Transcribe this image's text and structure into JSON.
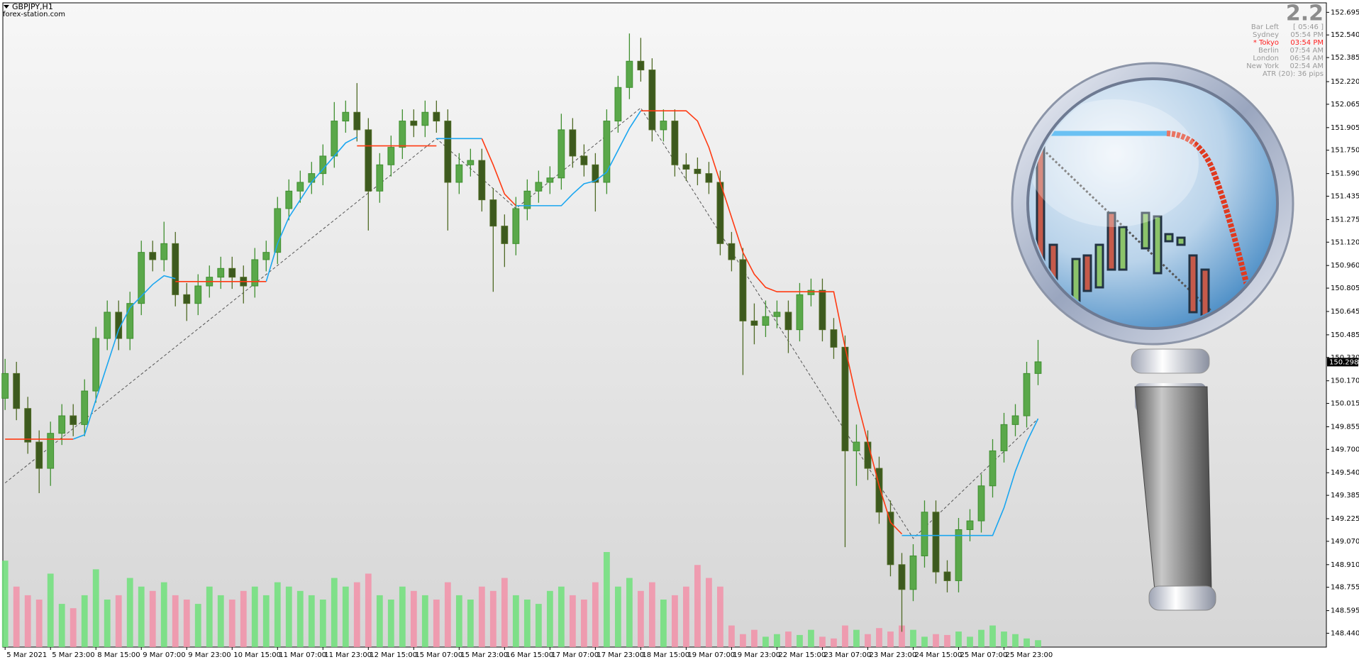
{
  "header": {
    "symbol": "GBPJPY,H1",
    "site": "forex-station.com"
  },
  "info_panel": {
    "big": "2.2",
    "rows": [
      [
        "Bar Left",
        "[ 05:46 ]"
      ],
      [
        "Sydney",
        "05:54 PM"
      ],
      [
        "* Tokyo",
        "03:54 PM"
      ],
      [
        "Berlin",
        "07:54 AM"
      ],
      [
        "London",
        "06:54 AM"
      ],
      [
        "New York",
        "02:54 AM"
      ]
    ],
    "atr": "ATR (20): 36 pips"
  },
  "chart_data": {
    "type": "candlestick",
    "xlim": [
      -0.2,
      116.4
    ],
    "xticks": [
      {
        "value": 0,
        "label": "5 Mar 2021"
      },
      {
        "value": 4,
        "label": "5 Mar 23:00"
      },
      {
        "value": 8,
        "label": "8 Mar 15:00"
      },
      {
        "value": 12,
        "label": "9 Mar 07:00"
      },
      {
        "value": 16,
        "label": "9 Mar 23:00"
      },
      {
        "value": 20,
        "label": "10 Mar 15:00"
      },
      {
        "value": 24,
        "label": "11 Mar 07:00"
      },
      {
        "value": 28,
        "label": "11 Mar 23:00"
      },
      {
        "value": 32,
        "label": "12 Mar 15:00"
      },
      {
        "value": 36,
        "label": "15 Mar 07:00"
      },
      {
        "value": 40,
        "label": "15 Mar 23:00"
      },
      {
        "value": 44,
        "label": "16 Mar 15:00"
      },
      {
        "value": 48,
        "label": "17 Mar 07:00"
      },
      {
        "value": 52,
        "label": "17 Mar 23:00"
      },
      {
        "value": 56,
        "label": "18 Mar 15:00"
      },
      {
        "value": 60,
        "label": "19 Mar 07:00"
      },
      {
        "value": 64,
        "label": "19 Mar 23:00"
      },
      {
        "value": 68,
        "label": "22 Mar 15:00"
      },
      {
        "value": 72,
        "label": "23 Mar 07:00"
      },
      {
        "value": 76,
        "label": "23 Mar 23:00"
      },
      {
        "value": 80,
        "label": "24 Mar 15:00"
      },
      {
        "value": 84,
        "label": "25 Mar 07:00"
      },
      {
        "value": 88,
        "label": "25 Mar 23:00"
      }
    ],
    "ylim": [
      148.345,
      152.76
    ],
    "yticks": [
      {
        "value": 152.695,
        "label": "152.695"
      },
      {
        "value": 152.54,
        "label": "152.540"
      },
      {
        "value": 152.385,
        "label": "152.385"
      },
      {
        "value": 152.22,
        "label": "152.220"
      },
      {
        "value": 152.065,
        "label": "152.065"
      },
      {
        "value": 151.905,
        "label": "151.905"
      },
      {
        "value": 151.75,
        "label": "151.750"
      },
      {
        "value": 151.59,
        "label": "151.590"
      },
      {
        "value": 151.435,
        "label": "151.435"
      },
      {
        "value": 151.275,
        "label": "151.275"
      },
      {
        "value": 151.12,
        "label": "151.120"
      },
      {
        "value": 150.96,
        "label": "150.960"
      },
      {
        "value": 150.805,
        "label": "150.805"
      },
      {
        "value": 150.645,
        "label": "150.645"
      },
      {
        "value": 150.485,
        "label": "150.485"
      },
      {
        "value": 150.33,
        "label": "150.330"
      },
      {
        "value": 150.17,
        "label": "150.170"
      },
      {
        "value": 150.015,
        "label": "150.015"
      },
      {
        "value": 149.855,
        "label": "149.855"
      },
      {
        "value": 149.7,
        "label": "149.700"
      },
      {
        "value": 149.54,
        "label": "149.540"
      },
      {
        "value": 149.385,
        "label": "149.385"
      },
      {
        "value": 149.225,
        "label": "149.225"
      },
      {
        "value": 149.07,
        "label": "149.070"
      },
      {
        "value": 148.91,
        "label": "148.910"
      },
      {
        "value": 148.755,
        "label": "148.755"
      },
      {
        "value": 148.595,
        "label": "148.595"
      },
      {
        "value": 148.44,
        "label": "148.440"
      }
    ],
    "grid": false,
    "up_color": "#3f8f2f",
    "down_color": "#4f6a25",
    "open": [
      150.05,
      150.22,
      149.98,
      149.75,
      149.57,
      149.81,
      149.93,
      149.87,
      150.1,
      150.46,
      150.64,
      150.46,
      150.7,
      151.05,
      151.0,
      151.11,
      150.76,
      150.7,
      150.82,
      150.88,
      150.94,
      150.88,
      150.82,
      151.0,
      151.05,
      151.35,
      151.47,
      151.53,
      151.59,
      151.71,
      151.95,
      152.01,
      151.89,
      151.47,
      151.65,
      151.77,
      151.95,
      151.92,
      152.01,
      151.95,
      151.53,
      151.65,
      151.68,
      151.41,
      151.23,
      151.11,
      151.35,
      151.47,
      151.53,
      151.56,
      151.89,
      151.71,
      151.65,
      151.53,
      151.95,
      152.18,
      152.36,
      152.3,
      151.89,
      151.95,
      151.65,
      151.62,
      151.59,
      151.53,
      151.11,
      151.0,
      150.58,
      150.55,
      150.61,
      150.64,
      150.52,
      150.76,
      150.79,
      150.52,
      150.4,
      149.69,
      149.75,
      149.57,
      149.27,
      148.91,
      148.74,
      148.97,
      149.27,
      148.86,
      148.8,
      149.15,
      149.21,
      149.45,
      149.69,
      149.87,
      149.93,
      150.22
    ],
    "high": [
      150.32,
      150.3,
      150.06,
      149.83,
      149.89,
      150.01,
      150.01,
      150.18,
      150.54,
      150.72,
      150.72,
      150.78,
      151.13,
      151.13,
      151.26,
      151.19,
      150.84,
      150.9,
      150.96,
      151.02,
      151.02,
      150.96,
      151.08,
      151.13,
      151.43,
      151.55,
      151.61,
      151.67,
      151.79,
      152.08,
      152.09,
      152.21,
      151.97,
      151.73,
      151.85,
      152.03,
      152.03,
      152.09,
      152.09,
      152.03,
      151.73,
      151.76,
      151.76,
      151.49,
      151.31,
      151.43,
      151.55,
      151.61,
      151.64,
      152.0,
      151.97,
      151.79,
      151.73,
      152.03,
      152.26,
      152.55,
      152.52,
      152.38,
      152.03,
      152.03,
      151.73,
      151.7,
      151.67,
      151.61,
      151.19,
      151.08,
      150.7,
      150.72,
      150.72,
      150.72,
      150.84,
      150.87,
      150.87,
      150.6,
      150.48,
      149.87,
      149.83,
      149.65,
      149.35,
      148.99,
      149.05,
      149.35,
      149.35,
      148.94,
      149.23,
      149.29,
      149.53,
      149.77,
      149.95,
      150.01,
      150.3,
      150.45
    ],
    "low": [
      149.97,
      149.9,
      149.67,
      149.4,
      149.45,
      149.73,
      149.79,
      149.79,
      150.02,
      150.38,
      150.38,
      150.38,
      150.62,
      150.92,
      150.92,
      150.68,
      150.58,
      150.62,
      150.74,
      150.8,
      150.8,
      150.7,
      150.74,
      150.92,
      150.97,
      151.27,
      151.39,
      151.45,
      151.51,
      151.63,
      151.87,
      151.81,
      151.2,
      151.39,
      151.57,
      151.69,
      151.84,
      151.84,
      151.87,
      151.2,
      151.45,
      151.57,
      151.33,
      150.78,
      150.95,
      151.03,
      151.27,
      151.39,
      151.45,
      151.48,
      151.63,
      151.57,
      151.33,
      151.45,
      151.87,
      152.1,
      152.22,
      151.81,
      151.81,
      151.57,
      151.54,
      151.51,
      151.45,
      151.03,
      150.92,
      150.21,
      150.42,
      150.47,
      150.53,
      150.36,
      150.44,
      150.68,
      150.44,
      150.32,
      149.03,
      149.45,
      149.49,
      149.19,
      148.83,
      148.45,
      148.66,
      148.89,
      148.78,
      148.72,
      148.72,
      149.07,
      149.13,
      149.37,
      149.61,
      149.79,
      149.85,
      150.14
    ],
    "close": [
      150.22,
      149.98,
      149.75,
      149.57,
      149.81,
      149.93,
      149.87,
      150.1,
      150.46,
      150.64,
      150.46,
      150.7,
      151.05,
      151.0,
      151.11,
      150.76,
      150.7,
      150.82,
      150.88,
      150.94,
      150.88,
      150.82,
      151.0,
      151.05,
      151.35,
      151.47,
      151.53,
      151.59,
      151.71,
      151.95,
      152.01,
      151.89,
      151.47,
      151.65,
      151.77,
      151.95,
      151.92,
      152.01,
      151.95,
      151.53,
      151.65,
      151.68,
      151.41,
      151.23,
      151.11,
      151.35,
      151.47,
      151.53,
      151.56,
      151.89,
      151.71,
      151.65,
      151.53,
      151.95,
      152.18,
      152.36,
      152.3,
      151.89,
      151.95,
      151.65,
      151.62,
      151.59,
      151.53,
      151.11,
      151.0,
      150.58,
      150.55,
      150.61,
      150.64,
      150.52,
      150.76,
      150.79,
      150.52,
      150.4,
      149.69,
      149.75,
      149.57,
      149.27,
      148.91,
      148.74,
      148.97,
      149.27,
      148.86,
      148.8,
      149.15,
      149.21,
      149.45,
      149.69,
      149.87,
      149.93,
      150.22,
      150.3
    ],
    "volume": [
      100,
      70,
      60,
      55,
      85,
      50,
      45,
      60,
      90,
      55,
      60,
      80,
      70,
      65,
      75,
      60,
      55,
      50,
      70,
      60,
      55,
      65,
      70,
      60,
      75,
      70,
      65,
      60,
      55,
      80,
      70,
      75,
      85,
      60,
      55,
      70,
      65,
      60,
      55,
      75,
      60,
      55,
      70,
      65,
      80,
      60,
      55,
      50,
      65,
      70,
      60,
      55,
      75,
      110,
      70,
      80,
      65,
      75,
      55,
      60,
      70,
      95,
      80,
      70,
      25,
      15,
      20,
      12,
      15,
      18,
      14,
      20,
      12,
      10,
      25,
      20,
      15,
      22,
      18,
      25,
      20,
      12,
      15,
      14,
      18,
      12,
      20,
      25,
      18,
      15,
      10,
      8
    ],
    "volume_up_color": "#6ee07a",
    "volume_down_color": "#f291a8",
    "series": [
      {
        "color": "#1aa6f0",
        "values": [
          null,
          null,
          null,
          null,
          null,
          null,
          149.77,
          149.8,
          150.04,
          150.28,
          150.52,
          150.67,
          150.75,
          150.83,
          150.89,
          150.87,
          null,
          null,
          null,
          null,
          null,
          null,
          null,
          150.85,
          151.11,
          151.29,
          151.41,
          151.53,
          151.62,
          151.71,
          151.8,
          151.84,
          null,
          null,
          null,
          null,
          null,
          null,
          151.83,
          151.83,
          151.83,
          151.83,
          151.83,
          null,
          null,
          151.37,
          151.37,
          151.37,
          151.37,
          151.37,
          151.45,
          151.52,
          151.54,
          151.6,
          151.75,
          151.9,
          152.02,
          null,
          null,
          null,
          null,
          null,
          null,
          null,
          null,
          null,
          null,
          null,
          null,
          null,
          null,
          null,
          null,
          null,
          null,
          null,
          null,
          null,
          null,
          149.11,
          149.11,
          149.11,
          149.11,
          149.11,
          149.11,
          149.11,
          149.11,
          149.11,
          149.3,
          149.55,
          149.75,
          149.91
        ]
      },
      {
        "color": "#ff3a12",
        "values": [
          149.77,
          149.77,
          149.77,
          149.77,
          149.77,
          149.77,
          149.77,
          null,
          null,
          null,
          null,
          null,
          null,
          null,
          null,
          150.85,
          150.85,
          150.85,
          150.85,
          150.85,
          150.85,
          150.85,
          150.85,
          150.85,
          null,
          null,
          null,
          null,
          null,
          null,
          null,
          151.78,
          151.78,
          151.78,
          151.78,
          151.78,
          151.78,
          151.78,
          151.78,
          null,
          null,
          null,
          151.83,
          151.65,
          151.45,
          151.37,
          null,
          null,
          null,
          null,
          null,
          null,
          null,
          null,
          null,
          null,
          152.02,
          152.02,
          152.02,
          152.02,
          152.02,
          151.95,
          151.77,
          151.53,
          151.29,
          151.05,
          150.9,
          150.81,
          150.78,
          150.78,
          150.78,
          150.78,
          150.78,
          150.78,
          150.4,
          150.05,
          149.75,
          149.45,
          149.2,
          149.12,
          null,
          null,
          null,
          null,
          null,
          null,
          null,
          null,
          null,
          null,
          null,
          null
        ]
      }
    ],
    "zigzag": {
      "color": "#555555",
      "x": [
        0,
        38,
        45,
        56,
        80,
        91
      ],
      "values": [
        149.47,
        151.83,
        151.35,
        152.04,
        149.09,
        149.91
      ]
    },
    "last_price": 150.298
  }
}
